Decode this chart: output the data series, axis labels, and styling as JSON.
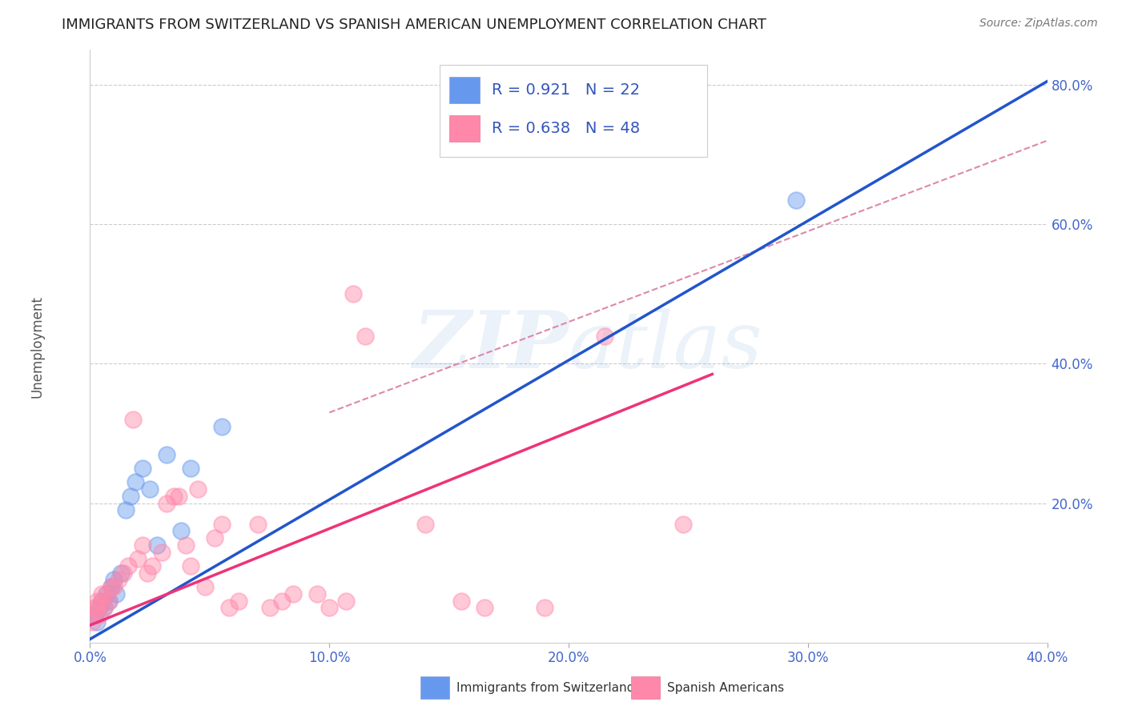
{
  "title": "IMMIGRANTS FROM SWITZERLAND VS SPANISH AMERICAN UNEMPLOYMENT CORRELATION CHART",
  "source": "Source: ZipAtlas.com",
  "ylabel": "Unemployment",
  "watermark": "ZIPatlas",
  "xlim": [
    0.0,
    0.4
  ],
  "ylim": [
    0.0,
    0.85
  ],
  "x_ticks": [
    0.0,
    0.1,
    0.2,
    0.3,
    0.4
  ],
  "x_tick_labels": [
    "0.0%",
    "10.0%",
    "20.0%",
    "30.0%",
    "40.0%"
  ],
  "y_ticks": [
    0.0,
    0.2,
    0.4,
    0.6,
    0.8
  ],
  "y_tick_labels": [
    "",
    "20.0%",
    "40.0%",
    "60.0%",
    "80.0%"
  ],
  "blue_R": "0.921",
  "blue_N": "22",
  "pink_R": "0.638",
  "pink_N": "48",
  "legend1_label": "Immigrants from Switzerland",
  "legend2_label": "Spanish Americans",
  "blue_color": "#6699ee",
  "pink_color": "#ff88aa",
  "blue_line_color": "#2255cc",
  "pink_line_color": "#ee3377",
  "dashed_line_color": "#dd88aa",
  "grid_color": "#cccccc",
  "blue_points_x": [
    0.002,
    0.003,
    0.004,
    0.005,
    0.006,
    0.007,
    0.008,
    0.009,
    0.01,
    0.011,
    0.013,
    0.015,
    0.017,
    0.019,
    0.022,
    0.025,
    0.028,
    0.032,
    0.038,
    0.042,
    0.055,
    0.295
  ],
  "blue_points_y": [
    0.04,
    0.03,
    0.05,
    0.06,
    0.05,
    0.07,
    0.06,
    0.08,
    0.09,
    0.07,
    0.1,
    0.19,
    0.21,
    0.23,
    0.25,
    0.22,
    0.14,
    0.27,
    0.16,
    0.25,
    0.31,
    0.635
  ],
  "pink_points_x": [
    0.001,
    0.002,
    0.002,
    0.003,
    0.003,
    0.004,
    0.005,
    0.005,
    0.006,
    0.007,
    0.008,
    0.009,
    0.01,
    0.012,
    0.014,
    0.016,
    0.018,
    0.02,
    0.022,
    0.024,
    0.026,
    0.03,
    0.032,
    0.035,
    0.037,
    0.04,
    0.042,
    0.045,
    0.048,
    0.052,
    0.055,
    0.058,
    0.062,
    0.07,
    0.075,
    0.08,
    0.085,
    0.095,
    0.1,
    0.107,
    0.11,
    0.115,
    0.14,
    0.155,
    0.165,
    0.19,
    0.215,
    0.248
  ],
  "pink_points_y": [
    0.03,
    0.04,
    0.05,
    0.05,
    0.06,
    0.04,
    0.06,
    0.07,
    0.05,
    0.07,
    0.06,
    0.08,
    0.08,
    0.09,
    0.1,
    0.11,
    0.32,
    0.12,
    0.14,
    0.1,
    0.11,
    0.13,
    0.2,
    0.21,
    0.21,
    0.14,
    0.11,
    0.22,
    0.08,
    0.15,
    0.17,
    0.05,
    0.06,
    0.17,
    0.05,
    0.06,
    0.07,
    0.07,
    0.05,
    0.06,
    0.5,
    0.44,
    0.17,
    0.06,
    0.05,
    0.05,
    0.44,
    0.17
  ],
  "blue_line_x": [
    0.0,
    0.4
  ],
  "blue_line_y": [
    0.005,
    0.805
  ],
  "pink_line_x": [
    0.0,
    0.26
  ],
  "pink_line_y": [
    0.025,
    0.385
  ],
  "dashed_line_x": [
    0.1,
    0.4
  ],
  "dashed_line_y": [
    0.33,
    0.72
  ]
}
